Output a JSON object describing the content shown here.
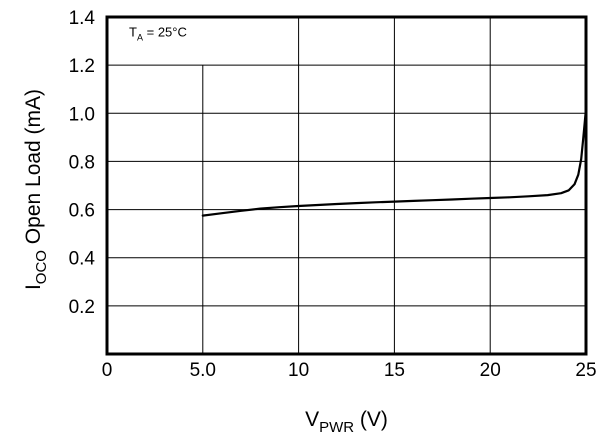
{
  "chart_data": {
    "type": "line",
    "x_ticks": [
      "0",
      "5.0",
      "10",
      "15",
      "20",
      "25"
    ],
    "y_ticks": [
      "0.2",
      "0.4",
      "0.6",
      "0.8",
      "1.0",
      "1.2",
      "1.4"
    ],
    "xlim": [
      0,
      25
    ],
    "ylim": [
      0,
      1.4
    ],
    "grid": true,
    "xlabel": {
      "main": "V",
      "sub": "PWR",
      "unit": " (V)"
    },
    "ylabel": {
      "main": "I",
      "sub": "OCO",
      "rest": " Open Load (mA)"
    },
    "annotation": {
      "main": "T",
      "sub": "A",
      "rest": " = 25°C"
    },
    "series": [
      {
        "points": [
          [
            5.0,
            0.575
          ],
          [
            6.0,
            0.585
          ],
          [
            7.0,
            0.595
          ],
          [
            8.0,
            0.604
          ],
          [
            9.0,
            0.61
          ],
          [
            10.0,
            0.615
          ],
          [
            11.0,
            0.619
          ],
          [
            12.0,
            0.623
          ],
          [
            13.0,
            0.627
          ],
          [
            14.0,
            0.63
          ],
          [
            15.0,
            0.633
          ],
          [
            16.0,
            0.636
          ],
          [
            17.0,
            0.639
          ],
          [
            18.0,
            0.642
          ],
          [
            19.0,
            0.645
          ],
          [
            20.0,
            0.648
          ],
          [
            21.0,
            0.651
          ],
          [
            22.0,
            0.655
          ],
          [
            23.0,
            0.66
          ],
          [
            23.7,
            0.668
          ],
          [
            24.1,
            0.68
          ],
          [
            24.4,
            0.705
          ],
          [
            24.6,
            0.745
          ],
          [
            24.75,
            0.81
          ],
          [
            24.85,
            0.89
          ],
          [
            24.93,
            0.96
          ],
          [
            25.0,
            1.02
          ]
        ]
      }
    ],
    "colors": {
      "line": "#000000",
      "grid": "#000000",
      "frame": "#000000",
      "background": "#ffffff"
    }
  }
}
